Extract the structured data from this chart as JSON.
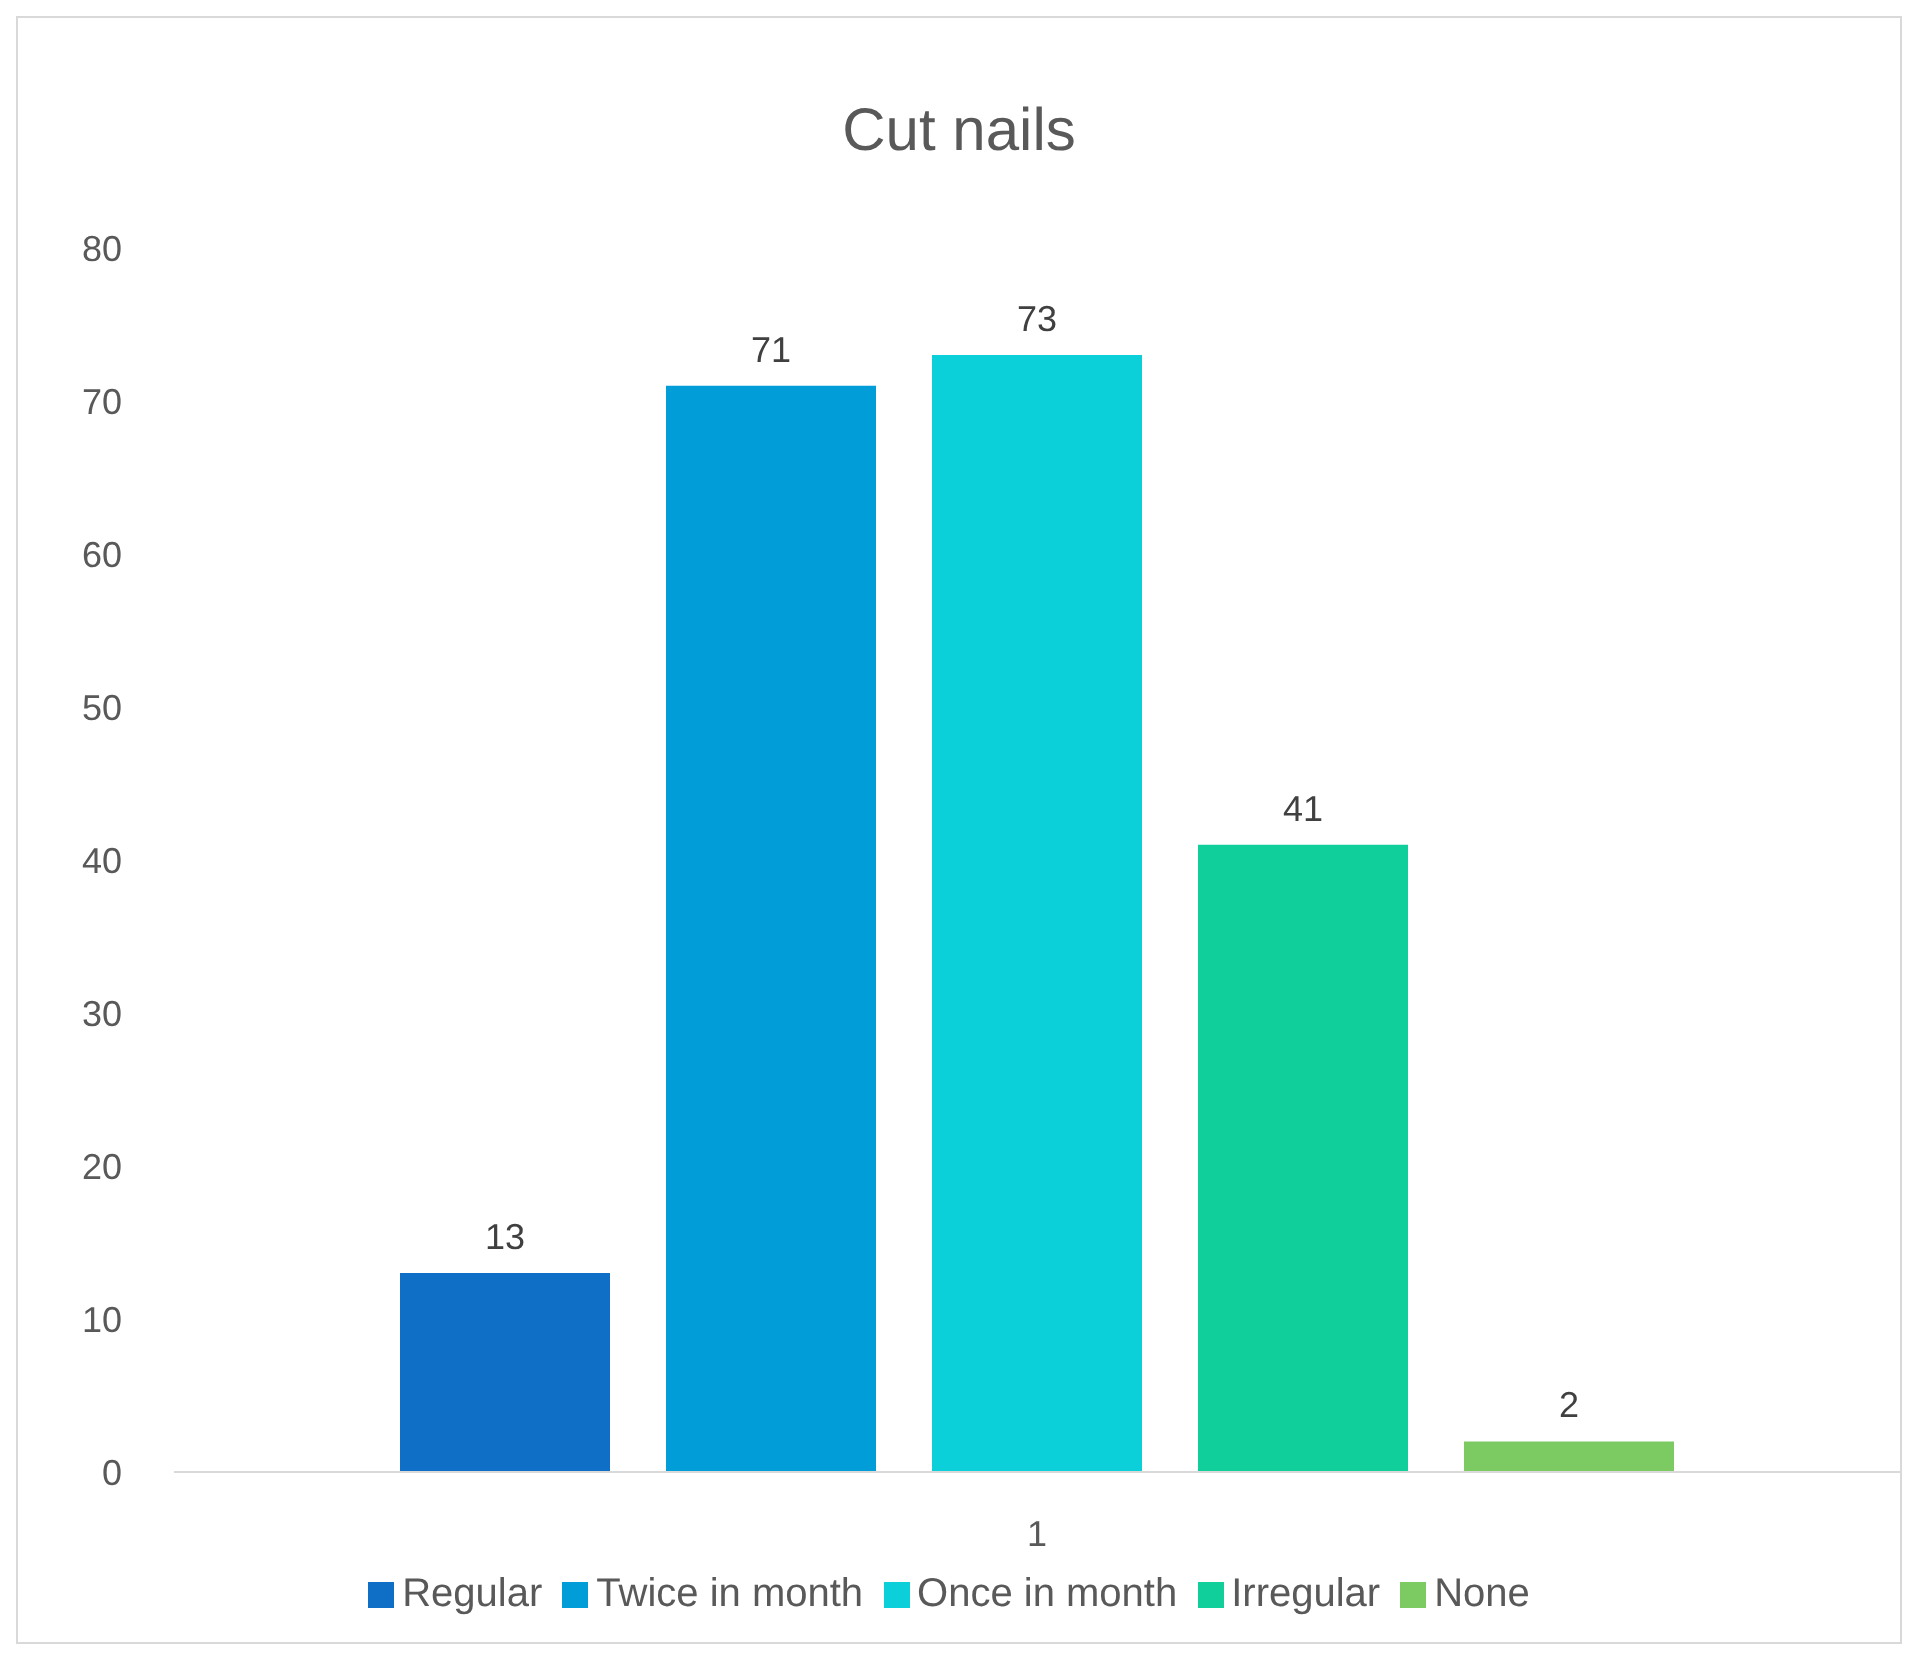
{
  "chart_data": {
    "type": "bar",
    "title": "Cut nails",
    "categories": [
      "1"
    ],
    "series": [
      {
        "name": "Regular",
        "color": "#0f6fc6",
        "values": [
          13
        ]
      },
      {
        "name": "Twice in month",
        "color": "#009dd9",
        "values": [
          71
        ]
      },
      {
        "name": "Once in month",
        "color": "#0bd0d9",
        "values": [
          73
        ]
      },
      {
        "name": "Irregular",
        "color": "#10cf9b",
        "values": [
          41
        ]
      },
      {
        "name": "None",
        "color": "#7cca62",
        "values": [
          2
        ]
      }
    ],
    "ylim": [
      0,
      80
    ],
    "yticks": [
      0,
      10,
      20,
      30,
      40,
      50,
      60,
      70,
      80
    ],
    "grid": false,
    "legend": "bottom",
    "data_labels": true
  }
}
